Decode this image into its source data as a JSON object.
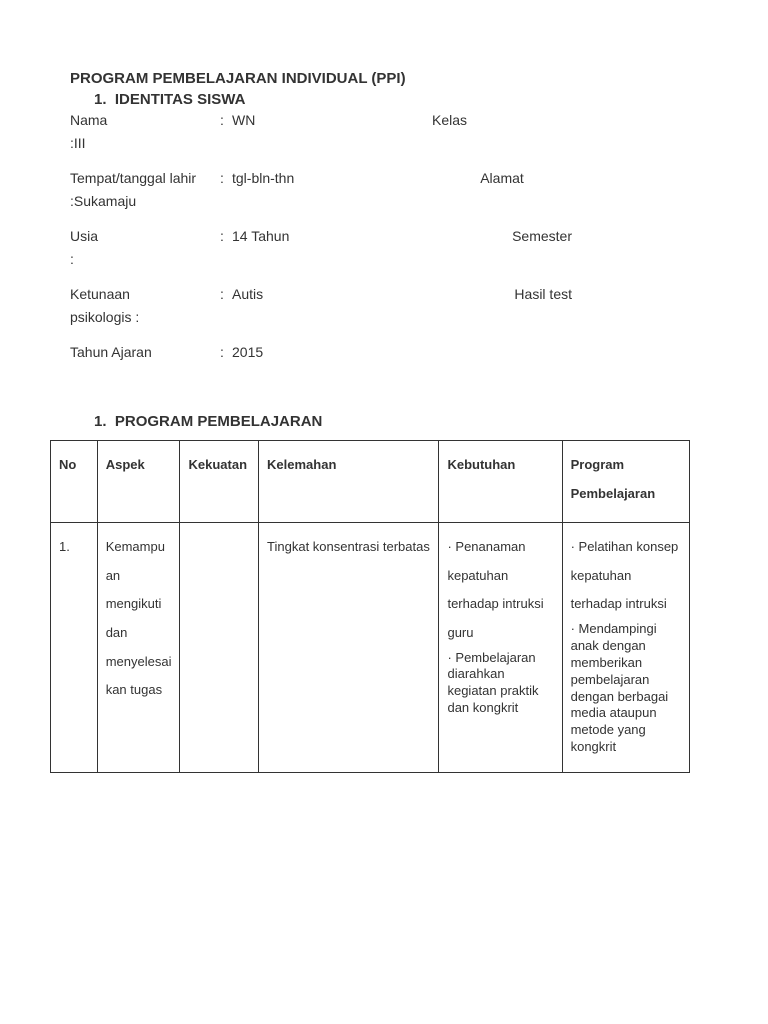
{
  "doc_title": "PROGRAM PEMBELAJARAN INDIVIDUAL (PPI)",
  "section1": {
    "number": "1.",
    "title": "IDENTITAS SISWA"
  },
  "identity": {
    "nama_label": "Nama",
    "nama_value": "WN",
    "kelas_label": "Kelas",
    "kelas_value": "III",
    "ttl_label": "Tempat/tanggal lahir",
    "ttl_value": "tgl-bln-thn",
    "alamat_label": "Alamat",
    "alamat_value": "Sukamaju",
    "usia_label": "Usia",
    "usia_value": "14 Tahun",
    "semester_label": "Semester",
    "semester_value": "",
    "ketunaan_label": "Ketunaan",
    "ketunaan_value": "Autis",
    "hasiltest_label": "Hasil test",
    "hasiltest_sub": "psikologis :",
    "tahun_label": "Tahun Ajaran",
    "tahun_value": "2015"
  },
  "section2": {
    "number": "1.",
    "title": "PROGRAM PEMBELAJARAN"
  },
  "table": {
    "headers": {
      "no": "No",
      "aspek": "Aspek",
      "kekuatan": "Kekuatan",
      "kelemahan": "Kelemahan",
      "kebutuhan": "Kebutuhan",
      "program": "Program Pembelajaran"
    },
    "row1": {
      "no": "1.",
      "aspek": "Kemampuan mengikuti dan menyelesaikan tugas",
      "kekuatan": "",
      "kelemahan": "Tingkat konsentrasi terbatas",
      "kebutuhan_1": "· Penanaman kepatuhan terhadap intruksi guru",
      "kebutuhan_2": "· Pembelajaran diarahkan kegiatan praktik dan kongkrit",
      "program_1": "· Pelatihan konsep kepatuhan terhadap intruksi",
      "program_2": "· Mendampingi anak dengan memberikan pembelajaran dengan berbagai media ataupun metode yang kongkrit"
    }
  },
  "colors": {
    "text": "#333333",
    "border": "#333333",
    "bg": "#ffffff"
  }
}
